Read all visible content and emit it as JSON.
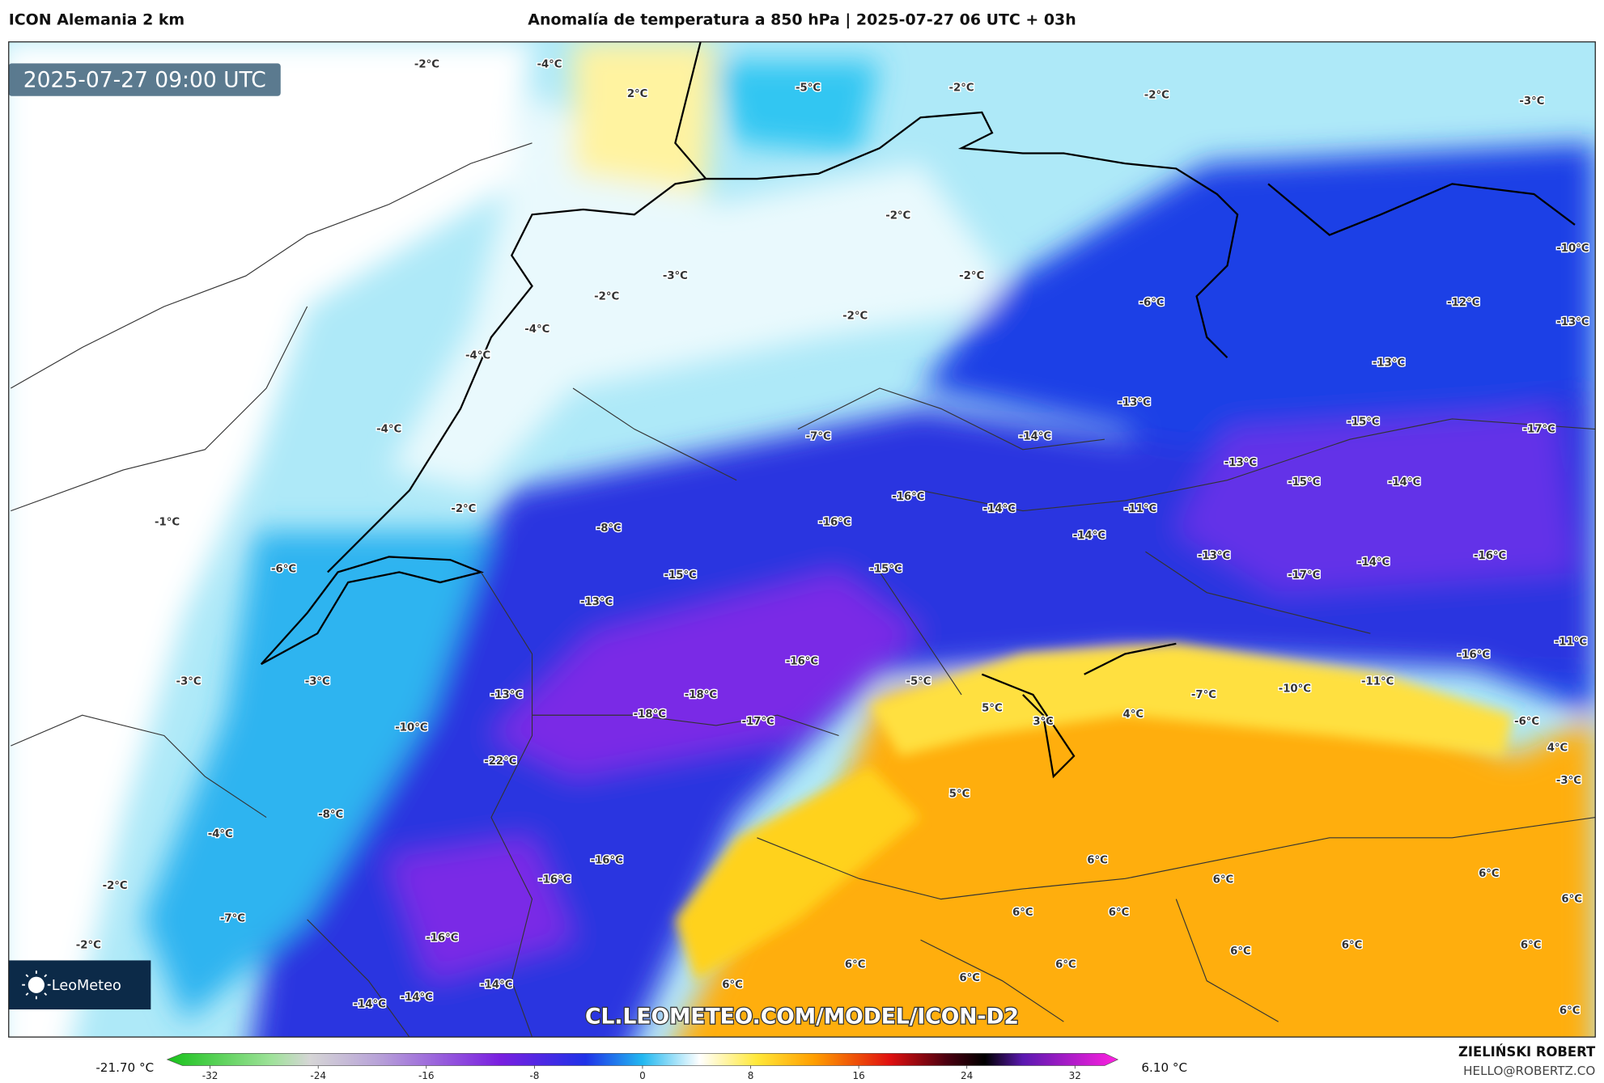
{
  "header": {
    "model": "ICON Alemania 2 km",
    "title": "Anomalía de temperatura a 850 hPa | 2025-07-27 06 UTC + 03h"
  },
  "map": {
    "timestamp": "2025-07-27 09:00 UTC",
    "logo": "LeoMeteo",
    "watermark": "CL.LEOMETEO.COM/MODEL/ICON-D2",
    "labels": [
      "-2°C",
      "-4°C",
      "2°C",
      "-5°C",
      "-2°C",
      "-2°C",
      "-3°C",
      "-2°C",
      "-3°C",
      "-2°C",
      "-2°C",
      "-6°C",
      "-12°C",
      "-10°C",
      "-4°C",
      "-2°C",
      "-13°C",
      "-4°C",
      "-13°C",
      "-13°C",
      "-4°C",
      "-7°C",
      "-14°C",
      "-15°C",
      "-17°C",
      "-13°C",
      "-15°C",
      "-14°C",
      "-16°C",
      "-14°C",
      "-11°C",
      "-1°C",
      "-2°C",
      "-8°C",
      "-16°C",
      "-14°C",
      "-13°C",
      "-14°C",
      "-16°C",
      "-6°C",
      "-15°C",
      "-15°C",
      "-17°C",
      "-13°C",
      "-11°C",
      "-16°C",
      "-16°C",
      "-3°C",
      "-3°C",
      "-5°C",
      "-11°C",
      "-13°C",
      "-18°C",
      "-7°C",
      "-10°C",
      "-18°C",
      "5°C",
      "4°C",
      "-17°C",
      "3°C",
      "-10°C",
      "-6°C",
      "4°C",
      "-22°C",
      "-3°C",
      "5°C",
      "-8°C",
      "-4°C",
      "-16°C",
      "6°C",
      "-16°C",
      "6°C",
      "6°C",
      "-2°C",
      "6°C",
      "6°C",
      "6°C",
      "-7°C",
      "-16°C",
      "-2°C",
      "6°C",
      "6°C",
      "6°C",
      "6°C",
      "6°C",
      "6°C",
      "6°C",
      "-14°C",
      "-14°C",
      "-14°C",
      "6°C"
    ]
  },
  "colorbar": {
    "min_label": "-21.70 °C",
    "max_label": "6.10 °C",
    "ticks": [
      -32,
      -24,
      -16,
      -8,
      0,
      8,
      16,
      24,
      32
    ]
  },
  "footer": {
    "author": "ZIELIŃSKI ROBERT",
    "contact": "HELLO@ROBERTZ.CO"
  }
}
